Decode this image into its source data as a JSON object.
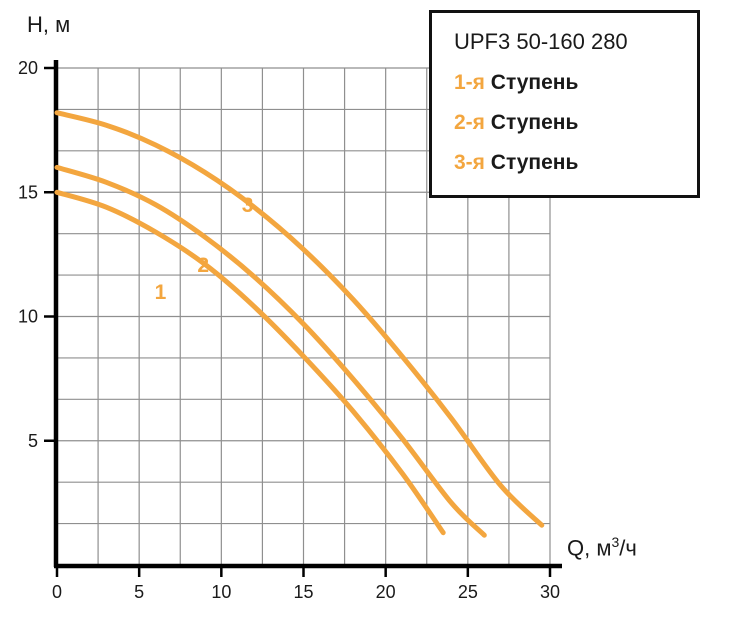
{
  "legend": {
    "title": "UPF3 50-160 280",
    "items": [
      {
        "prefix": "1-я",
        "label": "Ступень"
      },
      {
        "prefix": "2-я",
        "label": "Ступень"
      },
      {
        "prefix": "3-я",
        "label": "Ступень"
      }
    ]
  },
  "axes": {
    "y_title": "H, м",
    "x_title_main": "Q, м",
    "x_title_sup": "3",
    "x_title_rest": "/ч"
  },
  "colors": {
    "curve": "#F3A63F",
    "grid": "#8F8F8F",
    "axis": "#000000",
    "text": "#1A1A1A"
  },
  "chart_data": {
    "type": "line",
    "title": "UPF3 50-160 280",
    "xlabel": "Q, м³/ч",
    "ylabel": "H, м",
    "xlim": [
      0,
      30
    ],
    "ylim": [
      0,
      20
    ],
    "x_ticks": [
      0,
      5,
      10,
      15,
      20,
      25,
      30
    ],
    "y_ticks": [
      5,
      10,
      15,
      20
    ],
    "grid": {
      "visible": true,
      "x_step": 2.5,
      "y_divisions": 12
    },
    "legend_position": "top-right",
    "series": [
      {
        "name": "1-я Ступень",
        "points": [
          [
            0,
            15.0
          ],
          [
            3,
            14.4
          ],
          [
            6,
            13.4
          ],
          [
            9,
            12.1
          ],
          [
            12,
            10.4
          ],
          [
            15,
            8.4
          ],
          [
            18,
            6.2
          ],
          [
            21,
            3.7
          ],
          [
            23.5,
            1.3
          ]
        ]
      },
      {
        "name": "2-я Ступень",
        "points": [
          [
            0,
            16.0
          ],
          [
            3,
            15.4
          ],
          [
            6,
            14.5
          ],
          [
            9,
            13.2
          ],
          [
            12,
            11.6
          ],
          [
            15,
            9.7
          ],
          [
            18,
            7.5
          ],
          [
            21,
            5.1
          ],
          [
            24,
            2.5
          ],
          [
            26,
            1.2
          ]
        ]
      },
      {
        "name": "3-я Ступень",
        "points": [
          [
            0,
            18.2
          ],
          [
            3,
            17.7
          ],
          [
            6,
            16.9
          ],
          [
            9,
            15.8
          ],
          [
            12,
            14.4
          ],
          [
            15,
            12.7
          ],
          [
            18,
            10.7
          ],
          [
            21,
            8.4
          ],
          [
            24,
            5.9
          ],
          [
            27,
            3.2
          ],
          [
            29.5,
            1.6
          ]
        ]
      }
    ],
    "curve_labels": [
      {
        "text": "1",
        "q": 6.3,
        "h": 10.7
      },
      {
        "text": "2",
        "q": 8.9,
        "h": 11.8
      },
      {
        "text": "3",
        "q": 11.6,
        "h": 14.2
      }
    ]
  }
}
